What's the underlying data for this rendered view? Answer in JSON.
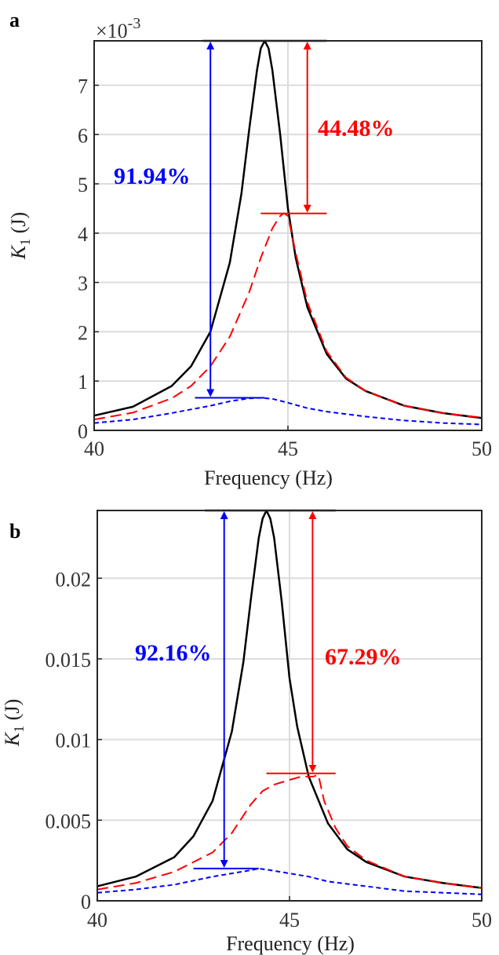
{
  "colors": {
    "series_black": "#000000",
    "series_red": "#ff0000",
    "series_blue": "#0000ff",
    "grid": "#dcdcdc",
    "axis": "#262626"
  },
  "chart_data": [
    {
      "panel_label": "a",
      "type": "line",
      "xlabel": "Frequency (Hz)",
      "ylabel_symbol": "K",
      "ylabel_sub": "1",
      "ylabel_unit": " (J)",
      "exponent_label": "×10",
      "exponent_power": "-3",
      "xlim": [
        40,
        50
      ],
      "ylim": [
        0,
        7.9
      ],
      "xticks": [
        40,
        45,
        50
      ],
      "yticks": [
        0,
        1,
        2,
        3,
        4,
        5,
        6,
        7
      ],
      "ytick_labels": [
        "0",
        "1",
        "2",
        "3",
        "4",
        "5",
        "6",
        "7"
      ],
      "grid": true,
      "series": [
        {
          "color": "series_black",
          "style": "solid",
          "x": [
            40,
            41,
            42,
            42.5,
            43,
            43.5,
            43.8,
            44,
            44.2,
            44.3,
            44.4,
            44.5,
            44.6,
            44.8,
            45,
            45.2,
            45.5,
            46,
            46.5,
            47,
            48,
            49,
            50
          ],
          "y": [
            0.3,
            0.48,
            0.9,
            1.3,
            2.0,
            3.4,
            4.8,
            6.1,
            7.3,
            7.75,
            7.9,
            7.75,
            7.3,
            6.0,
            4.5,
            3.5,
            2.5,
            1.55,
            1.05,
            0.8,
            0.5,
            0.35,
            0.25
          ]
        },
        {
          "color": "series_red",
          "style": "dashed",
          "x": [
            40,
            41,
            42,
            42.5,
            43,
            43.5,
            44,
            44.3,
            44.6,
            44.8,
            44.9,
            45,
            45.2,
            45.5,
            46,
            46.5,
            47,
            48,
            49,
            50
          ],
          "y": [
            0.22,
            0.36,
            0.65,
            0.9,
            1.3,
            1.9,
            2.8,
            3.5,
            4.1,
            4.35,
            4.4,
            4.35,
            3.6,
            2.6,
            1.6,
            1.07,
            0.8,
            0.5,
            0.35,
            0.26
          ]
        },
        {
          "color": "series_blue",
          "style": "dotted",
          "x": [
            40,
            41,
            42,
            43,
            43.5,
            44,
            44.3,
            44.6,
            45,
            45.5,
            46,
            47,
            48,
            49,
            50
          ],
          "y": [
            0.15,
            0.22,
            0.35,
            0.5,
            0.59,
            0.65,
            0.66,
            0.64,
            0.56,
            0.45,
            0.38,
            0.28,
            0.2,
            0.15,
            0.12
          ]
        }
      ],
      "annotations": [
        {
          "text": "91.94%",
          "color": "series_blue"
        },
        {
          "text": "44.48%",
          "color": "series_red"
        }
      ],
      "ref_levels": {
        "black_peak": 7.9,
        "red_peak": 4.4,
        "blue_peak": 0.66
      },
      "arrow_x": {
        "blue": 43.0,
        "red": 45.5
      },
      "red_bar": [
        44.3,
        46.0
      ],
      "blue_bar": [
        42.6,
        44.4
      ],
      "top_bar": [
        42.8,
        46.0
      ]
    },
    {
      "panel_label": "b",
      "type": "line",
      "xlabel": "Frequency (Hz)",
      "ylabel_symbol": "K",
      "ylabel_sub": "1",
      "ylabel_unit": " (J)",
      "xlim": [
        40,
        50
      ],
      "ylim": [
        0,
        0.0242
      ],
      "xticks": [
        40,
        45,
        50
      ],
      "yticks": [
        0,
        0.005,
        0.01,
        0.015,
        0.02
      ],
      "ytick_labels": [
        "0",
        "0.005",
        "0.01",
        "0.015",
        "0.02"
      ],
      "grid": true,
      "series": [
        {
          "color": "series_black",
          "style": "solid",
          "x": [
            40,
            41,
            42,
            42.5,
            43,
            43.5,
            43.8,
            44,
            44.2,
            44.3,
            44.4,
            44.5,
            44.6,
            44.8,
            45,
            45.2,
            45.5,
            46,
            46.5,
            47,
            48,
            49,
            50
          ],
          "y": [
            0.0009,
            0.0015,
            0.0027,
            0.004,
            0.0062,
            0.0105,
            0.0148,
            0.0188,
            0.0225,
            0.0237,
            0.0242,
            0.0237,
            0.0225,
            0.0185,
            0.0138,
            0.0108,
            0.0077,
            0.0048,
            0.0032,
            0.0024,
            0.0015,
            0.0011,
            0.0008
          ]
        },
        {
          "color": "series_red",
          "style": "dashed",
          "x": [
            40,
            41,
            42,
            43,
            43.5,
            44,
            44.3,
            44.6,
            45,
            45.3,
            45.6,
            45.75,
            45.9,
            46.2,
            46.5,
            47,
            48,
            49,
            50
          ],
          "y": [
            0.0007,
            0.0011,
            0.0018,
            0.003,
            0.0042,
            0.006,
            0.0068,
            0.0072,
            0.0075,
            0.0077,
            0.0077,
            0.0078,
            0.0062,
            0.0045,
            0.0034,
            0.0025,
            0.0015,
            0.0011,
            0.0008
          ]
        },
        {
          "color": "series_blue",
          "style": "dotted",
          "x": [
            40,
            41,
            42,
            43,
            43.5,
            44,
            44.2,
            44.5,
            45,
            45.5,
            46,
            47,
            48,
            49,
            50
          ],
          "y": [
            0.0005,
            0.0007,
            0.001,
            0.0015,
            0.0017,
            0.0019,
            0.002,
            0.0019,
            0.0017,
            0.0015,
            0.0012,
            0.0009,
            0.0006,
            0.0005,
            0.0004
          ]
        }
      ],
      "annotations": [
        {
          "text": "92.16%",
          "color": "series_blue"
        },
        {
          "text": "67.29%",
          "color": "series_red"
        }
      ],
      "ref_levels": {
        "black_peak": 0.0242,
        "red_peak": 0.0079,
        "blue_peak": 0.002
      },
      "arrow_x": {
        "blue": 43.3,
        "red": 45.6
      },
      "red_bar": [
        44.4,
        46.2
      ],
      "blue_bar": [
        42.5,
        44.2
      ],
      "top_bar": [
        42.8,
        46.2
      ]
    }
  ]
}
